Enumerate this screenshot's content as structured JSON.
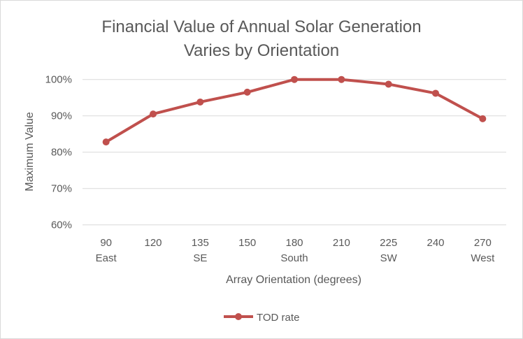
{
  "chart_data": {
    "type": "line",
    "title": "Financial Value of Annual Solar Generation",
    "subtitle": "Varies by Orientation",
    "xlabel": "Array Orientation (degrees)",
    "ylabel": "Maximum Value",
    "categories": [
      "90",
      "120",
      "135",
      "150",
      "180",
      "210",
      "225",
      "240",
      "270"
    ],
    "category_sublabels": [
      "East",
      "",
      "SE",
      "",
      "South",
      "",
      "SW",
      "",
      "West"
    ],
    "series": [
      {
        "name": "TOD rate",
        "color": "#c0504d",
        "values": [
          82.8,
          90.5,
          93.8,
          96.5,
          100,
          100,
          98.7,
          96.2,
          89.2
        ]
      }
    ],
    "ylim": [
      60,
      100
    ],
    "yticks": [
      "60%",
      "70%",
      "80%",
      "90%",
      "100%"
    ],
    "ytick_values": [
      60,
      70,
      80,
      90,
      100
    ],
    "grid": true,
    "legend": "bottom"
  }
}
